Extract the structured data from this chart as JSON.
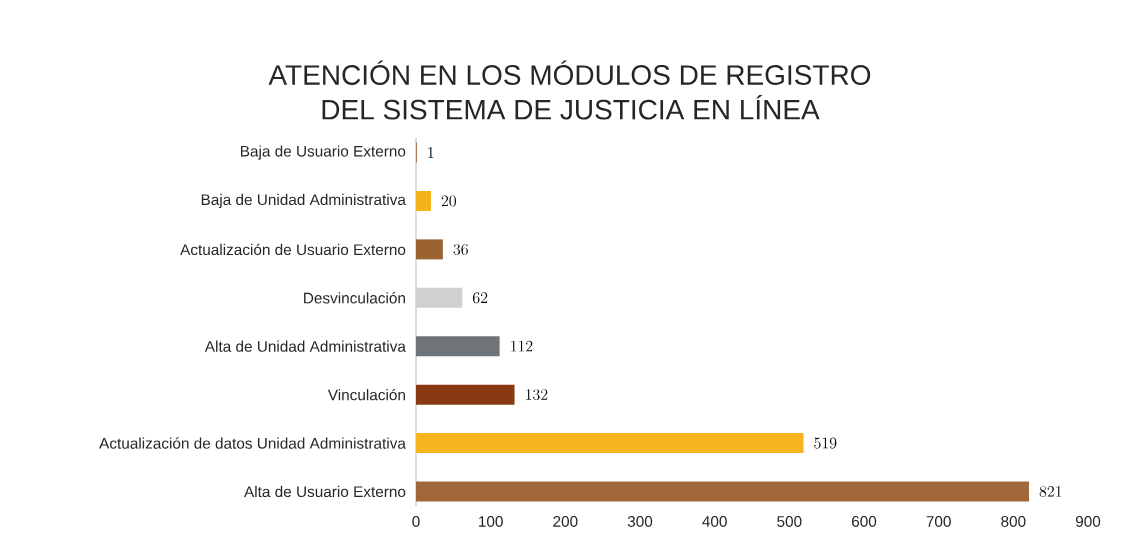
{
  "chart_data": {
    "type": "bar",
    "orientation": "horizontal",
    "title": "ATENCIÓN EN LOS MÓDULOS DE REGISTRO\nDEL SISTEMA DE JUSTICIA EN LÍNEA",
    "categories": [
      "Baja de Usuario Externo",
      "Baja de Unidad Administrativa",
      "Actualización de Usuario Externo",
      "Desvinculación",
      "Alta de Unidad Administrativa",
      "Vinculación",
      "Actualización de datos Unidad Administrativa",
      "Alta de Usuario Externo"
    ],
    "values": [
      1,
      20,
      36,
      62,
      112,
      132,
      519,
      821
    ],
    "colors": [
      "#9a5a2a",
      "#f5b21b",
      "#9b6330",
      "#d0d0d0",
      "#6f7478",
      "#8a3a12",
      "#f6b420",
      "#a0683a"
    ],
    "xlim": [
      0,
      900
    ],
    "xticks": [
      0,
      100,
      200,
      300,
      400,
      500,
      600,
      700,
      800,
      900
    ],
    "data_labels": true
  }
}
